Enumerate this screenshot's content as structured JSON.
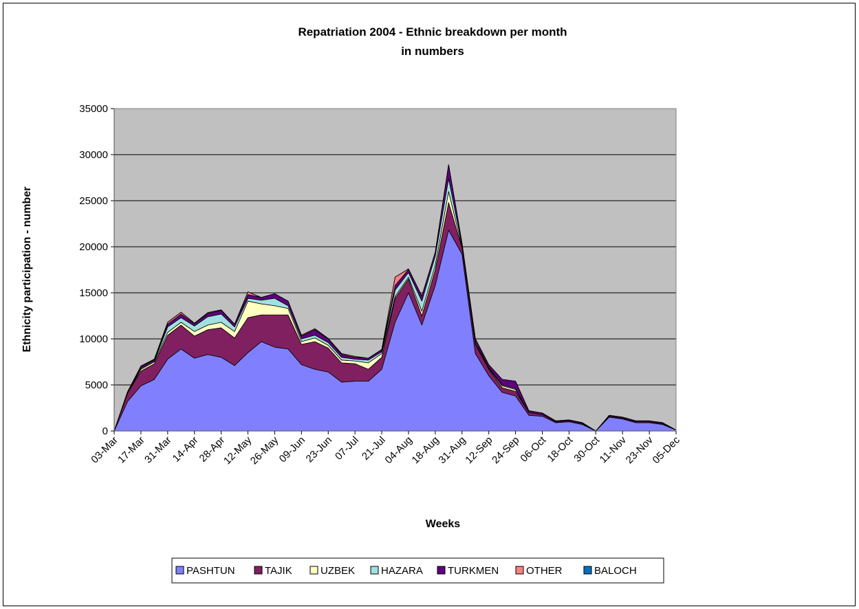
{
  "chart_data": {
    "type": "area",
    "stacked": true,
    "title": "Repatriation 2004 - Ethnic breakdown per month",
    "subtitle": "in numbers",
    "xlabel": "Weeks",
    "ylabel": "Ethnicity participation - number",
    "ylim": [
      0,
      35000
    ],
    "yticks": [
      "0",
      "5000",
      "10000",
      "15000",
      "20000",
      "25000",
      "30000",
      "35000"
    ],
    "grid": true,
    "legend": "bottom",
    "x_tick_labels": [
      "03-Mar",
      "17-Mar",
      "31-Mar",
      "14-Apr",
      "28-Apr",
      "12-May",
      "26-May",
      "09-Jun",
      "23-Jun",
      "07-Jul",
      "21-Jul",
      "04-Aug",
      "18-Aug",
      "31-Aug",
      "12-Sep",
      "24-Sep",
      "06-Oct",
      "18-Oct",
      "30-Oct",
      "11-Nov",
      "23-Nov",
      "05-Dec"
    ],
    "colors": {
      "plot_bg": "#c0c0c0"
    },
    "series": [
      {
        "name": "PASHTUN",
        "color": "#8080ff",
        "values": [
          0,
          3200,
          4900,
          5600,
          7800,
          8900,
          7900,
          8300,
          8000,
          7100,
          8500,
          9700,
          9100,
          8900,
          7200,
          6700,
          6400,
          5300,
          5400,
          5400,
          6700,
          11800,
          15000,
          11500,
          15800,
          21800,
          19200,
          8400,
          6000,
          4200,
          3800,
          1700,
          1600,
          900,
          1000,
          700,
          0,
          1500,
          1300,
          900,
          900,
          700,
          100
        ]
      },
      {
        "name": "TAJIK",
        "color": "#802060",
        "values": [
          0,
          900,
          1600,
          1700,
          2600,
          2600,
          2400,
          2700,
          3200,
          3000,
          3800,
          2900,
          3500,
          3700,
          2200,
          3000,
          2600,
          2100,
          1900,
          1300,
          1300,
          2600,
          1500,
          1000,
          1700,
          3000,
          700,
          1000,
          700,
          500,
          500,
          300,
          200,
          100,
          100,
          100,
          0,
          100,
          100,
          100,
          100,
          100,
          0
        ]
      },
      {
        "name": "UZBEK",
        "color": "#ffffc0",
        "values": [
          0,
          0,
          200,
          200,
          300,
          300,
          500,
          500,
          600,
          700,
          1800,
          1200,
          1000,
          700,
          300,
          400,
          300,
          300,
          300,
          700,
          400,
          200,
          200,
          500,
          500,
          1200,
          100,
          100,
          100,
          200,
          200,
          0,
          0,
          0,
          0,
          0,
          0,
          0,
          0,
          0,
          0,
          0,
          0
        ]
      },
      {
        "name": "HAZARA",
        "color": "#a0e0e0",
        "values": [
          0,
          0,
          100,
          100,
          600,
          500,
          600,
          900,
          900,
          500,
          300,
          400,
          800,
          300,
          300,
          300,
          300,
          300,
          200,
          300,
          200,
          700,
          500,
          1100,
          1000,
          1400,
          200,
          200,
          100,
          100,
          100,
          0,
          0,
          0,
          0,
          0,
          0,
          0,
          0,
          0,
          0,
          0,
          0
        ]
      },
      {
        "name": "TURKMEN",
        "color": "#600080",
        "values": [
          0,
          150,
          200,
          150,
          300,
          400,
          250,
          350,
          400,
          300,
          400,
          300,
          500,
          500,
          300,
          600,
          400,
          300,
          200,
          200,
          200,
          500,
          350,
          550,
          400,
          1500,
          200,
          300,
          300,
          600,
          800,
          200,
          150,
          100,
          100,
          100,
          0,
          100,
          100,
          100,
          100,
          100,
          0
        ]
      },
      {
        "name": "OTHER",
        "color": "#ff8080",
        "values": [
          0,
          0,
          50,
          50,
          200,
          200,
          50,
          100,
          50,
          0,
          300,
          0,
          0,
          0,
          100,
          100,
          50,
          100,
          100,
          0,
          50,
          900,
          50,
          0,
          0,
          0,
          0,
          0,
          0,
          0,
          0,
          0,
          0,
          0,
          0,
          0,
          0,
          0,
          0,
          0,
          0,
          0,
          0
        ]
      },
      {
        "name": "BALOCH",
        "color": "#0070c0",
        "values": [
          0,
          0,
          0,
          0,
          0,
          0,
          0,
          0,
          0,
          0,
          0,
          0,
          0,
          0,
          0,
          0,
          0,
          0,
          0,
          0,
          0,
          0,
          0,
          0,
          0,
          0,
          0,
          0,
          0,
          0,
          0,
          0,
          0,
          0,
          0,
          0,
          0,
          0,
          0,
          0,
          0,
          0,
          0
        ]
      }
    ]
  }
}
